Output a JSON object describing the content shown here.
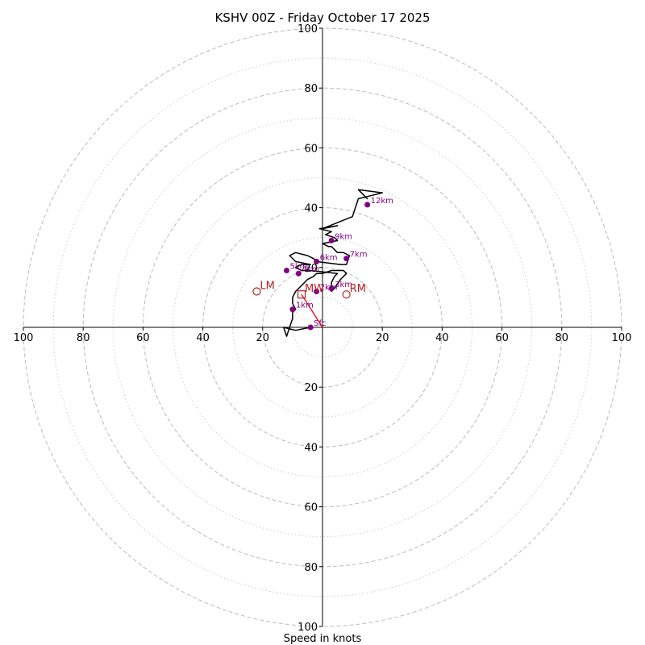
{
  "chart_data": {
    "type": "hodograph",
    "title": "KSHV 00Z - Friday October 17 2025",
    "xlabel": "Speed in knots",
    "units": "knots",
    "range": [
      -100,
      100
    ],
    "ring_major": [
      20,
      40,
      60,
      80,
      100
    ],
    "ring_minor": [
      10,
      30,
      50,
      70,
      90
    ],
    "x_ticks": [
      {
        "value": -100,
        "label": "100"
      },
      {
        "value": -80,
        "label": "80"
      },
      {
        "value": -60,
        "label": "60"
      },
      {
        "value": -40,
        "label": "40"
      },
      {
        "value": -20,
        "label": "20"
      },
      {
        "value": 20,
        "label": "20"
      },
      {
        "value": 40,
        "label": "40"
      },
      {
        "value": 60,
        "label": "60"
      },
      {
        "value": 80,
        "label": "80"
      },
      {
        "value": 100,
        "label": "100"
      }
    ],
    "y_ticks": [
      {
        "value": 100,
        "label": "100"
      },
      {
        "value": 80,
        "label": "80"
      },
      {
        "value": 60,
        "label": "60"
      },
      {
        "value": 40,
        "label": "40"
      },
      {
        "value": 20,
        "label": "20"
      },
      {
        "value": -20,
        "label": "20"
      },
      {
        "value": -40,
        "label": "40"
      },
      {
        "value": -60,
        "label": "60"
      },
      {
        "value": -80,
        "label": "80"
      },
      {
        "value": -100,
        "label": "100"
      }
    ],
    "hodograph_line": [
      [
        -4,
        0
      ],
      [
        -9,
        -1
      ],
      [
        -13,
        0
      ],
      [
        -12,
        -3
      ],
      [
        -11,
        0
      ],
      [
        -10,
        3
      ],
      [
        -10,
        5
      ],
      [
        -9,
        6
      ],
      [
        -10,
        8
      ],
      [
        -10,
        10
      ],
      [
        -9,
        12
      ],
      [
        -7,
        14
      ],
      [
        -6,
        15
      ],
      [
        -5,
        16
      ],
      [
        -3,
        17
      ],
      [
        -2,
        18
      ],
      [
        0,
        18
      ],
      [
        3,
        19
      ],
      [
        5,
        19
      ],
      [
        7,
        19
      ],
      [
        8,
        18
      ],
      [
        6,
        16
      ],
      [
        4,
        13
      ],
      [
        3,
        12
      ],
      [
        3,
        15
      ],
      [
        4,
        17
      ],
      [
        5,
        18
      ],
      [
        -4,
        19
      ],
      [
        -7,
        19
      ],
      [
        -9,
        20
      ],
      [
        -7,
        21
      ],
      [
        -5,
        21
      ],
      [
        -4,
        21
      ],
      [
        -9,
        22
      ],
      [
        -11,
        24
      ],
      [
        -9,
        25
      ],
      [
        -5,
        24
      ],
      [
        -3,
        23
      ],
      [
        -2,
        22
      ],
      [
        6,
        21
      ],
      [
        8,
        21
      ],
      [
        9,
        24
      ],
      [
        7,
        25
      ],
      [
        5,
        25
      ],
      [
        3,
        27
      ],
      [
        2,
        27
      ],
      [
        0,
        28
      ],
      [
        5,
        29
      ],
      [
        4,
        30
      ],
      [
        1,
        31
      ],
      [
        3,
        32
      ],
      [
        -1,
        33
      ],
      [
        5,
        34
      ],
      [
        0,
        33
      ],
      [
        10,
        37
      ],
      [
        12,
        43
      ],
      [
        16,
        44
      ],
      [
        20,
        45
      ],
      [
        12,
        46
      ],
      [
        15,
        43
      ],
      [
        13,
        45
      ],
      [
        14,
        44
      ]
    ],
    "height_markers": [
      {
        "label": "Sfc",
        "u": -4,
        "v": 0
      },
      {
        "label": "1km",
        "u": -10,
        "v": 6
      },
      {
        "label": "2km",
        "u": -2,
        "v": 12
      },
      {
        "label": "3km",
        "u": 3,
        "v": 13
      },
      {
        "label": "4km",
        "u": -8,
        "v": 18
      },
      {
        "label": "5km",
        "u": -12,
        "v": 19
      },
      {
        "label": "6km",
        "u": -2,
        "v": 22
      },
      {
        "label": "7km",
        "u": 8,
        "v": 23
      },
      {
        "label": "9km",
        "u": 3,
        "v": 29
      },
      {
        "label": "12km",
        "u": 15,
        "v": 41
      }
    ],
    "storm_motion_vector": {
      "from": [
        0,
        0
      ],
      "to": [
        -7,
        11
      ]
    },
    "motions": [
      {
        "label": "LM",
        "u": -22,
        "v": 12,
        "marker": "circle"
      },
      {
        "label": "MW",
        "u": -7,
        "v": 11,
        "marker": "square"
      },
      {
        "label": "RM",
        "u": 8,
        "v": 11,
        "marker": "circle"
      }
    ],
    "colors": {
      "line": "#000000",
      "markers": "#800080",
      "motion": "#b22222",
      "vector": "#ff0000",
      "grid_major": "#bbbbbb",
      "grid_minor": "#cccccc"
    }
  }
}
